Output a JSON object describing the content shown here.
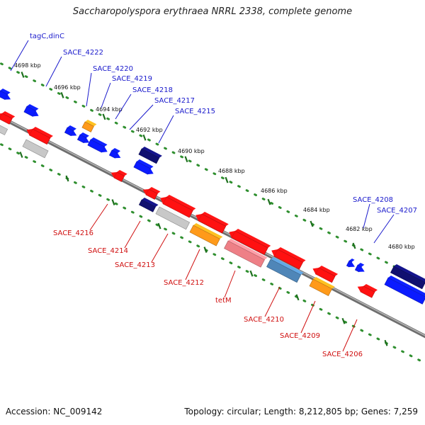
{
  "title": "Saccharopolyspora erythraea NRRL 2338, complete genome",
  "accession": "Accession: NC_009142",
  "topology": "Topology: circular; Length: 8,212,805 bp; Genes: 7,259",
  "colors": {
    "backbone": "#8a8a8a",
    "ruler": "#2f8f2f",
    "forward_gene": "#0b1bff",
    "reverse_gene": "#ff1111",
    "forward_label": "#1a1acc",
    "reverse_label": "#d01010",
    "orange": "#ff9a1a",
    "grey": "#c8c8c8",
    "navy": "#101070",
    "pink": "#ee7f86",
    "steel": "#4f86b8"
  },
  "kbp_labels": [
    {
      "kbp": 4698,
      "text": "4698 kbp"
    },
    {
      "kbp": 4696,
      "text": "4696 kbp"
    },
    {
      "kbp": 4694,
      "text": "4694 kbp"
    },
    {
      "kbp": 4692,
      "text": "4692 kbp"
    },
    {
      "kbp": 4690,
      "text": "4690 kbp"
    },
    {
      "kbp": 4688,
      "text": "4688 kbp"
    },
    {
      "kbp": 4686,
      "text": "4686 kbp"
    },
    {
      "kbp": 4684,
      "text": "4684 kbp"
    },
    {
      "kbp": 4682,
      "text": "4682 kbp"
    },
    {
      "kbp": 4680,
      "text": "4680 kbp"
    }
  ],
  "forward_labels": [
    {
      "text": "tagC,dinC"
    },
    {
      "text": "SACE_4222"
    },
    {
      "text": "SACE_4220"
    },
    {
      "text": "SACE_4219"
    },
    {
      "text": "SACE_4218"
    },
    {
      "text": "SACE_4217"
    },
    {
      "text": "SACE_4215"
    },
    {
      "text": "SACE_4208"
    },
    {
      "text": "SACE_4207"
    }
  ],
  "reverse_labels": [
    {
      "text": "SACE_4216"
    },
    {
      "text": "SACE_4214"
    },
    {
      "text": "SACE_4213"
    },
    {
      "text": "SACE_4212"
    },
    {
      "text": "tetM"
    },
    {
      "text": "SACE_4210"
    },
    {
      "text": "SACE_4209"
    },
    {
      "text": "SACE_4206"
    }
  ]
}
